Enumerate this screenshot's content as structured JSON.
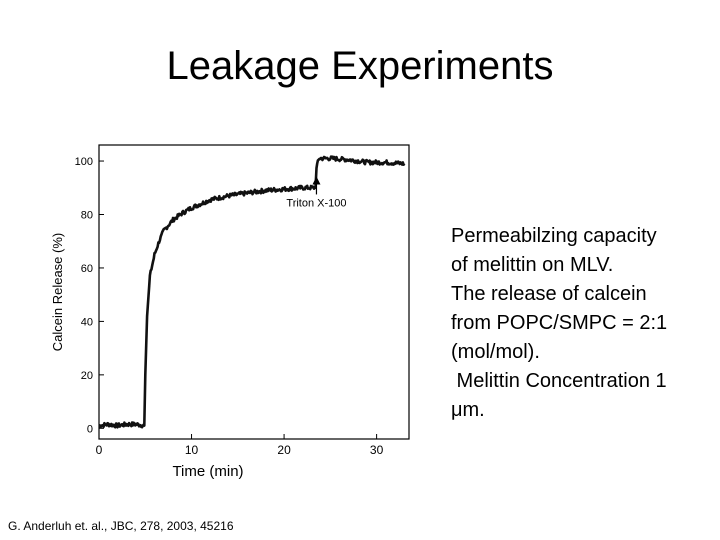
{
  "slide": {
    "title": "Leakage Experiments",
    "description_lines": [
      "Permeabilzing capacity",
      "of melittin on MLV.",
      "The release of calcein",
      "from POPC/SMPC = 2:1",
      "(mol/mol).",
      " Melittin Concentration 1",
      "μm."
    ],
    "citation": "G. Anderluh et. al., JBC, 278, 2003, 45216"
  },
  "chart_data": {
    "type": "line",
    "title": "",
    "xlabel": "Time (min)",
    "ylabel": "Calcein Release (%)",
    "xlim": [
      0,
      33.5
    ],
    "ylim": [
      -4,
      106
    ],
    "x_ticks": [
      0,
      10,
      20,
      30
    ],
    "x_tick_labels": [
      "0",
      "10",
      "20",
      "30"
    ],
    "y_ticks": [
      0,
      20,
      40,
      60,
      80,
      100
    ],
    "y_tick_labels": [
      "0",
      "20",
      "40",
      "60",
      "80",
      "100"
    ],
    "grid": false,
    "annotations": [
      {
        "text": "Triton X-100",
        "x": 23.5,
        "y": 86
      }
    ],
    "series": [
      {
        "x": [
          0,
          1,
          2,
          3,
          4,
          4.9,
          5.0,
          5.2,
          5.5,
          6,
          6.5,
          7,
          8,
          9,
          10,
          11,
          12,
          14,
          16,
          18,
          20,
          22,
          23.4,
          23.5,
          23.8,
          25,
          27,
          29,
          31,
          33
        ],
        "y": [
          1,
          1.5,
          1,
          1.5,
          1.5,
          1,
          20,
          42,
          57,
          65,
          70,
          74,
          78,
          80.5,
          82.5,
          84,
          85.5,
          87,
          88,
          89,
          89.5,
          90,
          90,
          98,
          101,
          101,
          100.5,
          99.5,
          99.5,
          99
        ]
      }
    ]
  }
}
